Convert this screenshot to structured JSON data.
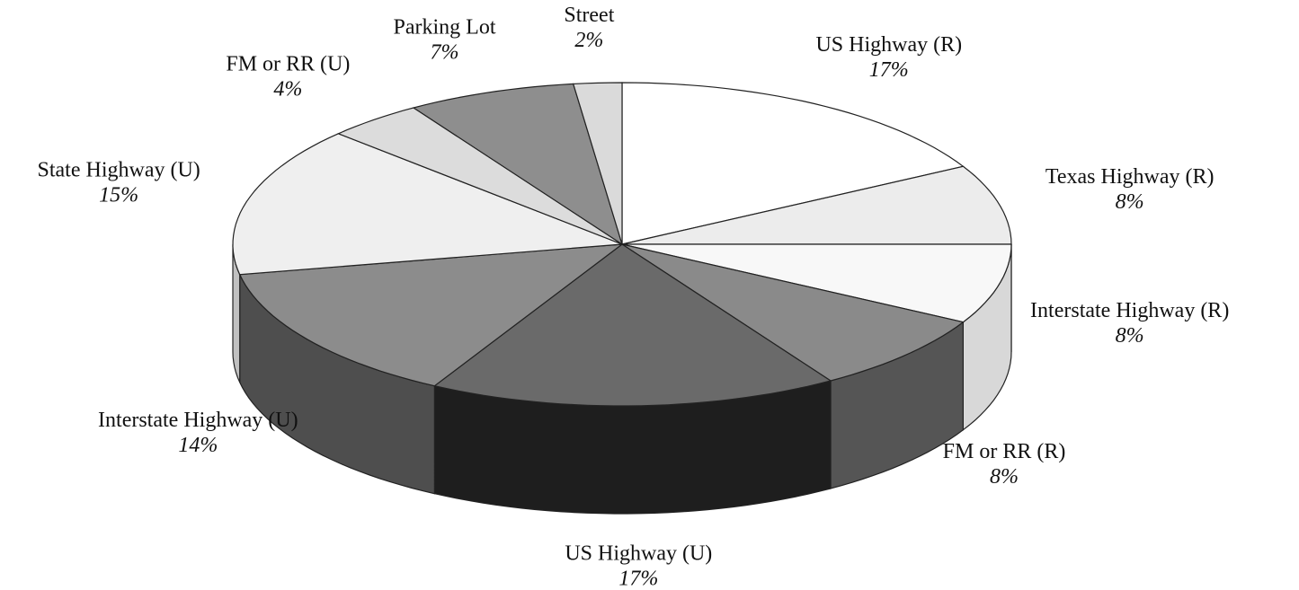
{
  "chart_data": {
    "type": "pie3d",
    "categories": [
      "US Highway (R)",
      "Texas Highway (R)",
      "Interstate Highway (R)",
      "FM or RR (R)",
      "US Highway (U)",
      "Interstate Highway (U)",
      "State Highway (U)",
      "FM or RR (U)",
      "Parking Lot",
      "Street"
    ],
    "values": [
      17,
      8,
      8,
      8,
      17,
      14,
      15,
      4,
      7,
      2
    ],
    "value_labels": [
      "17%",
      "8%",
      "8%",
      "8%",
      "17%",
      "14%",
      "15%",
      "4%",
      "7%",
      "2%"
    ],
    "colors": [
      "#ffffff",
      "#ececec",
      "#f8f8f8",
      "#8a8a8a",
      "#6a6a6a",
      "#8c8c8c",
      "#efefef",
      "#dcdcdc",
      "#8e8e8e",
      "#dadada"
    ],
    "side_colors": [
      "#e0e0e0",
      "#cfcfcf",
      "#d8d8d8",
      "#555555",
      "#1e1e1e",
      "#4e4e4e",
      "#c0c0c0",
      "#aaaaaa",
      "#555555",
      "#aaaaaa"
    ]
  }
}
